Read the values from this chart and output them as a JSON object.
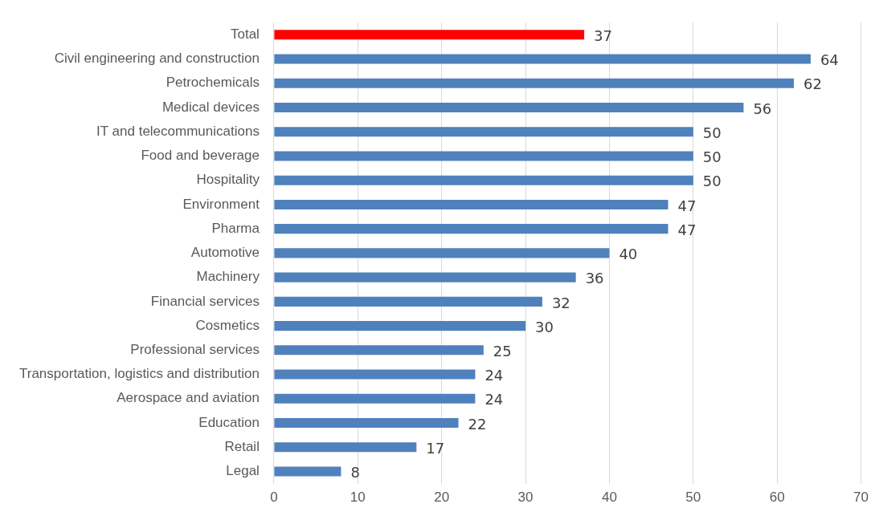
{
  "chart_data": {
    "type": "bar",
    "orientation": "horizontal",
    "categories": [
      "Total",
      "Civil engineering and construction",
      "Petrochemicals",
      "Medical devices",
      "IT and telecommunications",
      "Food and beverage",
      "Hospitality",
      "Environment",
      "Pharma",
      "Automotive",
      "Machinery",
      "Financial services",
      "Cosmetics",
      "Professional services",
      "Transportation, logistics and distribution",
      "Aerospace and aviation",
      "Education",
      "Retail",
      "Legal"
    ],
    "values": [
      37,
      64,
      62,
      56,
      50,
      50,
      50,
      47,
      47,
      40,
      36,
      32,
      30,
      25,
      24,
      24,
      22,
      17,
      8
    ],
    "colors": [
      "#ff0000",
      "#4f81bd",
      "#4f81bd",
      "#4f81bd",
      "#4f81bd",
      "#4f81bd",
      "#4f81bd",
      "#4f81bd",
      "#4f81bd",
      "#4f81bd",
      "#4f81bd",
      "#4f81bd",
      "#4f81bd",
      "#4f81bd",
      "#4f81bd",
      "#4f81bd",
      "#4f81bd",
      "#4f81bd",
      "#4f81bd"
    ],
    "xlim": [
      0,
      70
    ],
    "xticks": [
      0,
      10,
      20,
      30,
      40,
      50,
      60,
      70
    ],
    "grid": "x",
    "data_labels": true,
    "legend": false
  }
}
